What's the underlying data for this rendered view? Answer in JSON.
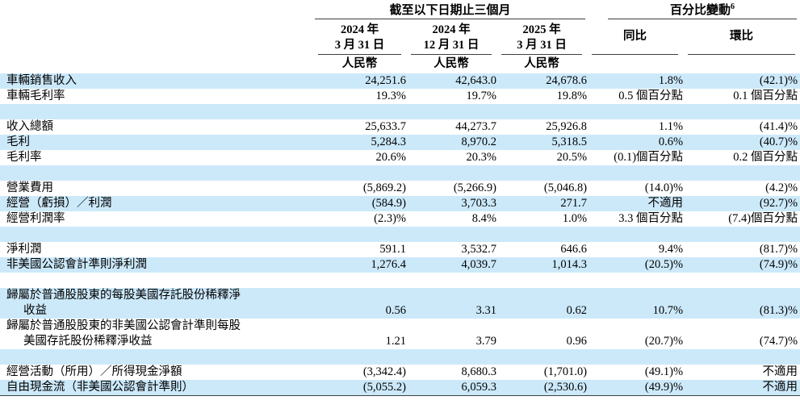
{
  "colors": {
    "stripe": "#cce9fa",
    "rule": "#3f3f3f"
  },
  "table": {
    "group_headers": {
      "period": "截至以下日期止三個月",
      "change": "百分比變動",
      "footnote": "6"
    },
    "columns": [
      {
        "line1": "2024 年",
        "line2": "3 月 31 日",
        "sub": "人民幣"
      },
      {
        "line1": "2024 年",
        "line2": "12 月 31 日",
        "sub": "人民幣"
      },
      {
        "line1": "2025 年",
        "line2": "3 月 31 日",
        "sub": "人民幣"
      },
      {
        "label": "同比"
      },
      {
        "label": "環比"
      }
    ],
    "rows": [
      {
        "type": "data",
        "shaded": true,
        "label": [
          "車輛銷售收入"
        ],
        "values": [
          "24,251.6",
          "42,643.0",
          "24,678.6",
          "1.8%",
          "(42.1)%"
        ]
      },
      {
        "type": "data",
        "shaded": false,
        "label": [
          "車輛毛利率"
        ],
        "values": [
          "19.3%",
          "19.7%",
          "19.8%",
          "0.5 個百分點",
          "0.1 個百分點"
        ]
      },
      {
        "type": "spacer",
        "shaded": true
      },
      {
        "type": "data",
        "shaded": false,
        "label": [
          "收入總額"
        ],
        "values": [
          "25,633.7",
          "44,273.7",
          "25,926.8",
          "1.1%",
          "(41.4)%"
        ]
      },
      {
        "type": "data",
        "shaded": true,
        "label": [
          "毛利"
        ],
        "values": [
          "5,284.3",
          "8,970.2",
          "5,318.5",
          "0.6%",
          "(40.7)%"
        ]
      },
      {
        "type": "data",
        "shaded": false,
        "label": [
          "毛利率"
        ],
        "values": [
          "20.6%",
          "20.3%",
          "20.5%",
          "(0.1)個百分點",
          "0.2 個百分點"
        ]
      },
      {
        "type": "spacer",
        "shaded": true
      },
      {
        "type": "data",
        "shaded": false,
        "label": [
          "營業費用"
        ],
        "values": [
          "(5,869.2)",
          "(5,266.9)",
          "(5,046.8)",
          "(14.0)%",
          "(4.2)%"
        ]
      },
      {
        "type": "data",
        "shaded": true,
        "label": [
          "經營（虧損）／利潤"
        ],
        "values": [
          "(584.9)",
          "3,703.3",
          "271.7",
          "不適用",
          "(92.7)%"
        ]
      },
      {
        "type": "data",
        "shaded": false,
        "label": [
          "經營利潤率"
        ],
        "values": [
          "(2.3)%",
          "8.4%",
          "1.0%",
          "3.3 個百分點",
          "(7.4)個百分點"
        ]
      },
      {
        "type": "spacer",
        "shaded": true
      },
      {
        "type": "data",
        "shaded": false,
        "label": [
          "淨利潤"
        ],
        "values": [
          "591.1",
          "3,532.7",
          "646.6",
          "9.4%",
          "(81.7)%"
        ]
      },
      {
        "type": "data",
        "shaded": true,
        "label": [
          "非美國公認會計準則淨利潤"
        ],
        "values": [
          "1,276.4",
          "4,039.7",
          "1,014.3",
          "(20.5)%",
          "(74.9)%"
        ]
      },
      {
        "type": "spacer",
        "shaded": false
      },
      {
        "type": "data",
        "shaded": true,
        "label": [
          "歸屬於普通股股東的每股美國存託股份稀釋淨",
          "收益"
        ],
        "values": [
          "0.56",
          "3.31",
          "0.62",
          "10.7%",
          "(81.3)%"
        ]
      },
      {
        "type": "data",
        "shaded": false,
        "label": [
          "歸屬於普通股股東的非美國公認會計準則每股",
          "美國存託股份稀釋淨收益"
        ],
        "values": [
          "1.21",
          "3.79",
          "0.96",
          "(20.7)%",
          "(74.7)%"
        ]
      },
      {
        "type": "spacer",
        "shaded": true
      },
      {
        "type": "data",
        "shaded": false,
        "label": [
          "經營活動（所用）／所得現金淨額"
        ],
        "values": [
          "(3,342.4)",
          "8,680.3",
          "(1,701.0)",
          "(49.1)%",
          "不適用"
        ]
      },
      {
        "type": "data",
        "shaded": true,
        "label": [
          "自由現金流（非美國公認會計準則）"
        ],
        "values": [
          "(5,055.2)",
          "6,059.3",
          "(2,530.6)",
          "(49.9)%",
          "不適用"
        ]
      }
    ]
  }
}
